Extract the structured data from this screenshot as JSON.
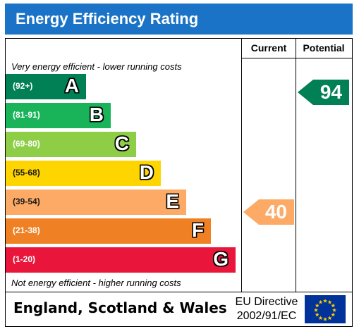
{
  "title": "Energy Efficiency Rating",
  "columns": {
    "current": "Current",
    "potential": "Potential"
  },
  "captions": {
    "top": "Very energy efficient - lower running costs",
    "bottom": "Not energy efficient - higher running costs"
  },
  "bands": [
    {
      "range": "(92+)",
      "letter": "A",
      "color": "#008054"
    },
    {
      "range": "(81-91)",
      "letter": "B",
      "color": "#19b459"
    },
    {
      "range": "(69-80)",
      "letter": "C",
      "color": "#8dce46"
    },
    {
      "range": "(55-68)",
      "letter": "D",
      "color": "#ffd500"
    },
    {
      "range": "(39-54)",
      "letter": "E",
      "color": "#fcaa65"
    },
    {
      "range": "(21-38)",
      "letter": "F",
      "color": "#ef8023"
    },
    {
      "range": "(1-20)",
      "letter": "G",
      "color": "#e9153b"
    }
  ],
  "current": {
    "value": "40",
    "band": "E",
    "color": "#fcaa65"
  },
  "potential": {
    "value": "94",
    "band": "A",
    "color": "#008054"
  },
  "footer": {
    "region": "England, Scotland & Wales",
    "directive_line1": "EU Directive",
    "directive_line2": "2002/91/EC"
  }
}
